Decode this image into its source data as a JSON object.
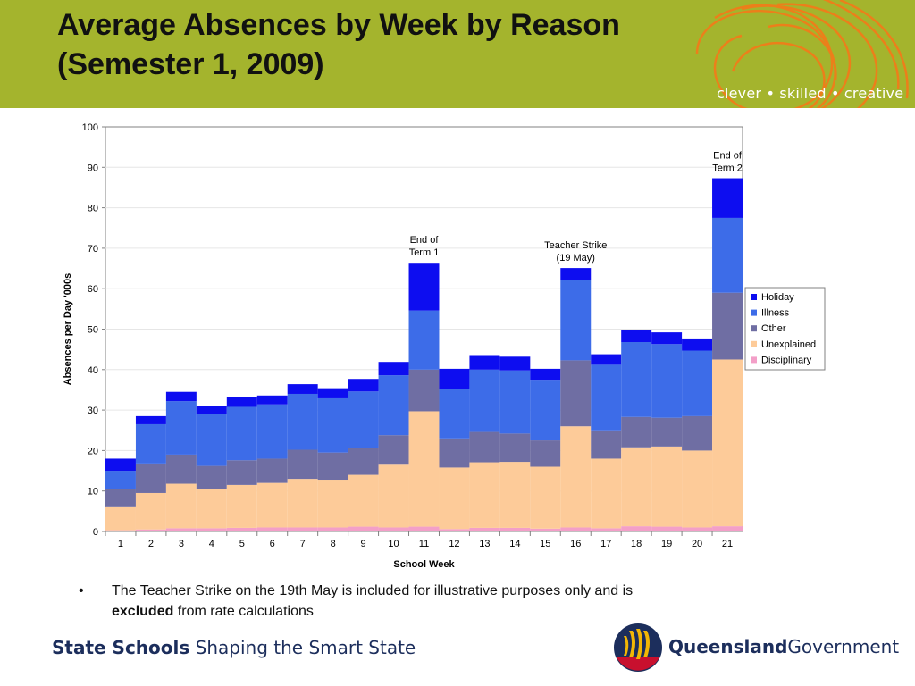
{
  "header": {
    "title_line1": "Average Absences by Week by Reason",
    "title_line2": "(Semester 1, 2009)",
    "tagline": "clever • skilled • creative",
    "banner_color": "#a4b42d",
    "swirl_color": "#f07d1a"
  },
  "chart_data": {
    "type": "bar",
    "stacked": true,
    "xlabel": "School Week",
    "ylabel": "Absences per Day '000s",
    "ylim": [
      0,
      100
    ],
    "yticks": [
      0,
      10,
      20,
      30,
      40,
      50,
      60,
      70,
      80,
      90,
      100
    ],
    "grid": true,
    "legend_position": "right",
    "categories": [
      "1",
      "2",
      "3",
      "4",
      "5",
      "6",
      "7",
      "8",
      "9",
      "10",
      "11",
      "12",
      "13",
      "14",
      "15",
      "16",
      "17",
      "18",
      "19",
      "20",
      "21"
    ],
    "series": [
      {
        "name": "Disciplinary",
        "color": "#f39fc8",
        "values": [
          0.3,
          0.5,
          0.8,
          0.8,
          0.9,
          1.0,
          1.0,
          1.0,
          1.2,
          1.0,
          1.2,
          0.6,
          0.9,
          0.9,
          0.7,
          1.0,
          0.8,
          1.3,
          1.2,
          1.0,
          1.3
        ]
      },
      {
        "name": "Unexplained",
        "color": "#fdcb99",
        "values": [
          5.7,
          9.0,
          11.0,
          9.7,
          10.6,
          11.0,
          12.0,
          11.8,
          12.8,
          15.5,
          28.5,
          15.2,
          16.2,
          16.3,
          15.3,
          25.0,
          17.2,
          19.5,
          19.8,
          19.0,
          41.2
        ]
      },
      {
        "name": "Other",
        "color": "#6f6ea3",
        "values": [
          4.5,
          7.3,
          7.2,
          5.7,
          6.1,
          6.0,
          7.2,
          6.7,
          6.7,
          7.3,
          10.3,
          7.2,
          7.5,
          7.0,
          6.5,
          16.3,
          7.0,
          7.5,
          7.1,
          8.5,
          16.5
        ]
      },
      {
        "name": "Illness",
        "color": "#3d6ce8",
        "values": [
          4.5,
          9.7,
          13.2,
          12.8,
          13.2,
          13.4,
          13.8,
          13.4,
          13.9,
          14.8,
          14.6,
          12.3,
          15.4,
          15.6,
          15.0,
          19.9,
          16.2,
          18.5,
          18.2,
          16.2,
          18.5
        ]
      },
      {
        "name": "Holiday",
        "color": "#0d0df0",
        "values": [
          3.0,
          2.0,
          2.3,
          2.0,
          2.4,
          2.2,
          2.4,
          2.5,
          3.1,
          3.3,
          11.8,
          4.9,
          3.6,
          3.4,
          2.7,
          2.9,
          2.6,
          3.0,
          2.9,
          3.0,
          9.8
        ]
      }
    ],
    "totals": [
      18.0,
      28.5,
      34.5,
      31.0,
      33.2,
      33.6,
      36.4,
      35.4,
      37.7,
      41.9,
      66.4,
      40.2,
      43.6,
      43.2,
      40.2,
      65.1,
      43.8,
      49.8,
      49.2,
      47.7,
      87.3
    ],
    "annotations": [
      {
        "category": "11",
        "lines": [
          "End of",
          "Term 1"
        ]
      },
      {
        "category": "16",
        "lines": [
          "Teacher Strike",
          "(19 May)"
        ]
      },
      {
        "category": "21",
        "lines": [
          "End of",
          "Term 2"
        ]
      }
    ]
  },
  "note": {
    "bullet": "•",
    "text_before": "The Teacher Strike on the 19th May is included for illustrative purposes only and is",
    "bold": "excluded",
    "text_after": " from rate calculations"
  },
  "footer": {
    "left_bold": "State Schools",
    "left_rest": " Shaping the Smart State",
    "right_bold": "Queensland",
    "right_rest": "Government"
  },
  "icons": {
    "logo": "queensland-government-crest"
  }
}
